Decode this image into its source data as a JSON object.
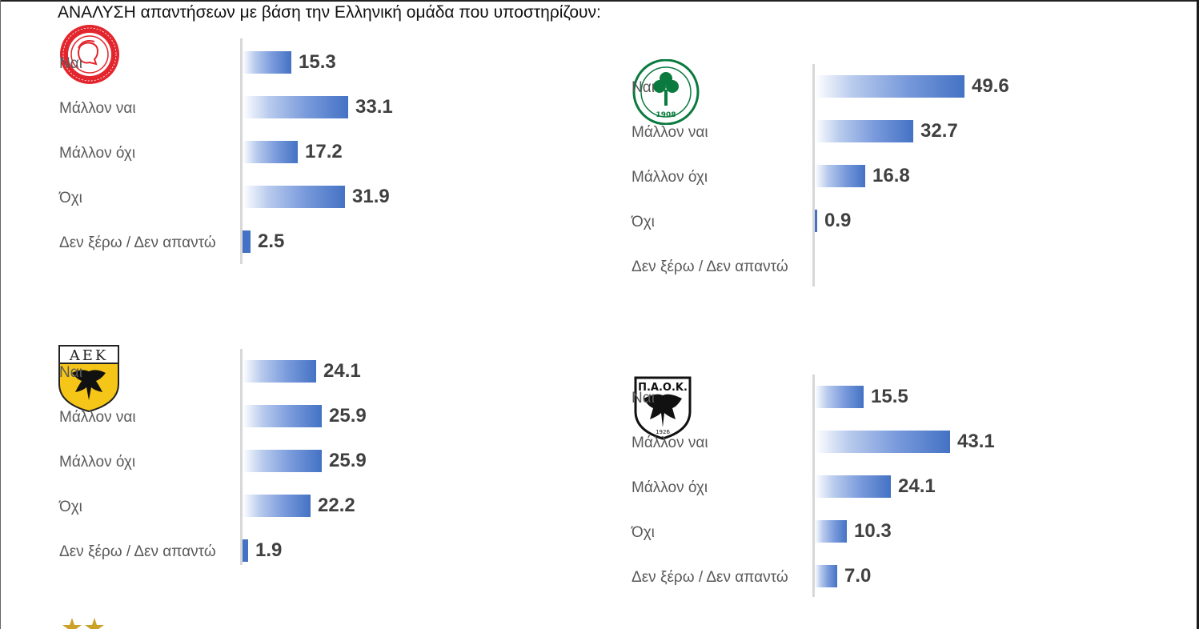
{
  "title": "ΑΝΑΛΥΣΗ απαντήσεων με βάση την Ελληνική ομάδα που υποστηρίζουν:",
  "chart_data": [
    {
      "type": "bar",
      "orientation": "horizontal",
      "categories": [
        "Ναι",
        "Μάλλον ναι",
        "Μάλλον όχι",
        "Όχι",
        "Δεν ξέρω / Δεν απαντώ"
      ],
      "values": [
        15.3,
        33.1,
        17.2,
        31.9,
        2.5
      ],
      "data_labels": [
        "15.3",
        "33.1",
        "17.2",
        "31.9",
        "2.5"
      ],
      "logo": "olympiacos-logo"
    },
    {
      "type": "bar",
      "orientation": "horizontal",
      "categories": [
        "Ναι",
        "Μάλλον ναι",
        "Μάλλον όχι",
        "Όχι",
        "Δεν ξέρω / Δεν απαντώ"
      ],
      "values": [
        49.6,
        32.7,
        16.8,
        0.9,
        0
      ],
      "data_labels": [
        "49.6",
        "32.7",
        "16.8",
        "0.9",
        ""
      ],
      "logo": "panathinaikos-logo"
    },
    {
      "type": "bar",
      "orientation": "horizontal",
      "categories": [
        "Ναι",
        "Μάλλον ναι",
        "Μάλλον όχι",
        "Όχι",
        "Δεν ξέρω / Δεν απαντώ"
      ],
      "values": [
        24.1,
        25.9,
        25.9,
        22.2,
        1.9
      ],
      "data_labels": [
        "24.1",
        "25.9",
        "25.9",
        "22.2",
        "1.9"
      ],
      "logo": "aek-logo"
    },
    {
      "type": "bar",
      "orientation": "horizontal",
      "categories": [
        "Ναι",
        "Μάλλον ναι",
        "Μάλλον όχι",
        "Όχι",
        "Δεν ξέρω / Δεν απαντώ"
      ],
      "values": [
        15.5,
        43.1,
        24.1,
        10.3,
        7.0
      ],
      "data_labels": [
        "15.5",
        "43.1",
        "24.1",
        "10.3",
        "7.0"
      ],
      "logo": "paok-logo"
    }
  ],
  "logos": {
    "aek_text": "ΑΕΚ",
    "paok_text": "Π.Α.Ο.Κ.",
    "pao_year": "1908",
    "paok_year": "1926"
  },
  "colors": {
    "bar": "#4472c4",
    "label": "#595959",
    "value": "#404040",
    "axis": "#d7d7d7",
    "olympiacos": "#e3262d",
    "panathinaikos": "#0a7a3e",
    "aek": "#f5c518"
  }
}
